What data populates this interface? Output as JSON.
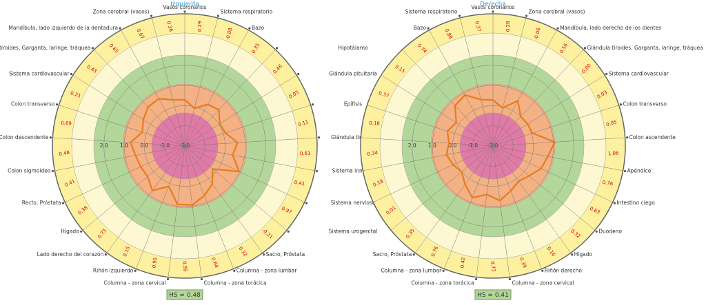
{
  "chart_data": [
    {
      "type": "radar",
      "title": "Izquierda",
      "hs_label": "HS = 0.48",
      "categories": [
        "Vasos coronarios",
        "Sistema respiratorio",
        "Bazo",
        "Hipotálamo",
        "Glándula pituitaria",
        "Epífisis",
        "Glándula tiroides",
        "Sistema inmune",
        "Sistema nervioso",
        "Sistema urogenital",
        "Sacro, Próstata",
        "Columna - zona lumbar",
        "Columna - zona torácica",
        "Columna - zona cervical",
        "Riñón izquierdo",
        "Lado derecho del corazón",
        "Hígado",
        "Recto, Próstata",
        "Colon sigmoideo",
        "Colon descendente",
        "Colon transverso",
        "Sistema cardiovascular",
        "Glándula tiroides, Garganta, laringe, tráquea",
        "Mandíbula, lado izquierdo de la dentadura",
        "Zona cerebral (vasos)"
      ],
      "values": [
        0.29,
        -0.08,
        0.35,
        0.46,
        0.05,
        0.11,
        0.61,
        0.41,
        0.97,
        -0.21,
        0.32,
        0.64,
        0.95,
        0.91,
        0.15,
        0.73,
        0.38,
        0.41,
        0.48,
        0.69,
        0.21,
        0.43,
        0.65,
        0.67,
        0.36
      ],
      "color": "#e87b1e",
      "rlim": [
        -2,
        2.5
      ],
      "rticks": [
        {
          "value": 2,
          "label": "2.0"
        },
        {
          "value": 1,
          "label": "1.0"
        },
        {
          "value": 0,
          "label": "0.0"
        },
        {
          "value": -1,
          "label": "-1.0"
        },
        {
          "value": -2,
          "label": "-2.0"
        }
      ]
    },
    {
      "type": "radar",
      "title": "Derecha",
      "hs_label": "HS = 0.41",
      "categories": [
        "Vasos coronarios",
        "Zona cerebral (vasos)",
        "Mandíbula, lado derecho de los dientes",
        "Glándula tiroides, Garganta, laringe, tráquea",
        "Sistema cardiovascular",
        "Colon transverso",
        "Colon ascendente",
        "Apéndice",
        "Intestino ciego",
        "Duodeno",
        "Hígado",
        "Riñón derecho",
        "Columna - zona cervical",
        "Columna - zona torácica",
        "Columna - zona lumbar",
        "Sacro, Próstata",
        null,
        null,
        null,
        null,
        null,
        null,
        null,
        "Bazo",
        "Sistema respiratorio"
      ],
      "values": [
        0.28,
        -0.06,
        0.56,
        0,
        0.03,
        0.05,
        1.06,
        0.76,
        0.63,
        0.32,
        0.16,
        0.39,
        0.73,
        0.42,
        0.76,
        0.35,
        0.01,
        0.18,
        0.34,
        0.18,
        0.37,
        0.15,
        0.74,
        0.88,
        0.37
      ],
      "value_labels": [
        "0.28",
        "-0.06",
        "0.56",
        "-0.00",
        "0.03",
        "0.05",
        "1.06",
        "0.76",
        "0.63",
        "0.32",
        "0.16",
        "0.39",
        "0.73",
        "0.42",
        "0.76",
        "0.35",
        "0.01",
        "0.18",
        "0.34",
        "0.18",
        "0.37",
        "0.15",
        "0.74",
        "0.88",
        "0.37"
      ],
      "color": "#e87b1e",
      "rlim": [
        -2,
        2.5
      ],
      "rticks": [
        {
          "value": 2,
          "label": "2.0"
        },
        {
          "value": 1,
          "label": "1.0"
        },
        {
          "value": 0,
          "label": "0.0"
        },
        {
          "value": -1,
          "label": "-1.0"
        },
        {
          "value": -2,
          "label": "-2.0"
        }
      ]
    }
  ]
}
